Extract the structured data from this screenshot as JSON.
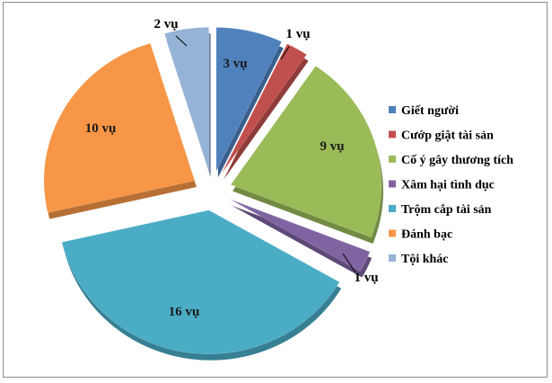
{
  "chart_data": {
    "type": "pie",
    "exploded": true,
    "three_d": true,
    "title": "",
    "slices": [
      {
        "name": "Giết người",
        "value": 3,
        "label": "3 vụ",
        "color": "#4F81BD",
        "side": "#3A5F8C"
      },
      {
        "name": "Cướp giật tài sản",
        "value": 1,
        "label": "1 vụ",
        "color": "#C0504D",
        "side": "#8E3B39"
      },
      {
        "name": "Cố ý gây thương tích",
        "value": 9,
        "label": "9 vụ",
        "color": "#9BBB59",
        "side": "#728A42"
      },
      {
        "name": "Xâm hại tình dục",
        "value": 1,
        "label": "1 vụ",
        "color": "#8064A2",
        "side": "#5E4A78"
      },
      {
        "name": "Trộm cắp tài sản",
        "value": 16,
        "label": "16 vụ",
        "color": "#4BACC6",
        "side": "#377F93"
      },
      {
        "name": "Đánh bạc",
        "value": 10,
        "label": "10 vụ",
        "color": "#F79646",
        "side": "#B76F34"
      },
      {
        "name": "Tội khác",
        "value": 2,
        "label": "2 vụ",
        "color": "#95B3D7",
        "side": "#6E84A0"
      }
    ],
    "legend": {
      "position": "right"
    }
  }
}
